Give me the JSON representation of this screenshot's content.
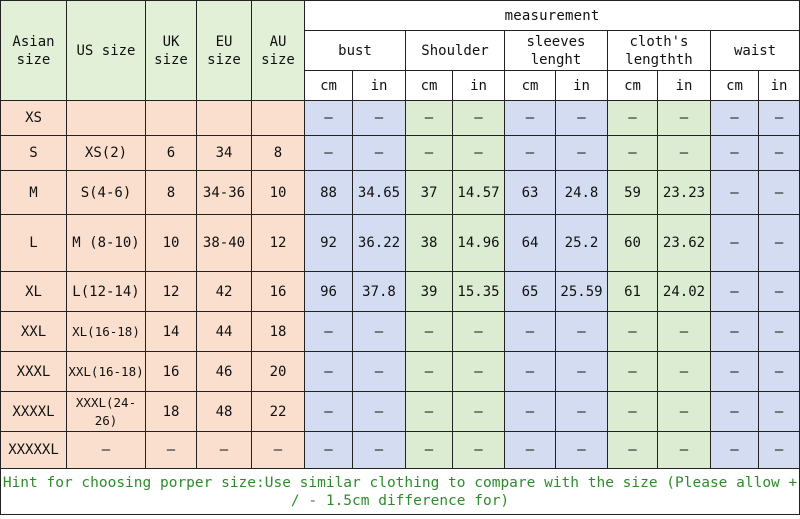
{
  "headers": {
    "asian": "Asian size",
    "us": "US size",
    "uk": "UK size",
    "eu": "EU size",
    "au": "AU size",
    "measurement": "measurement",
    "groups": [
      "bust",
      "Shoulder",
      "sleeves lenght",
      "cloth's lengthth",
      "waist"
    ],
    "units": [
      "cm",
      "in",
      "cm",
      "in",
      "cm",
      "in",
      "cm",
      "in",
      "cm",
      "in"
    ]
  },
  "rows": [
    {
      "asian": "XS",
      "us": "",
      "uk": "",
      "eu": "",
      "au": "",
      "m": [
        "–",
        "–",
        "–",
        "–",
        "–",
        "–",
        "–",
        "–",
        "–",
        "–"
      ]
    },
    {
      "asian": "S",
      "us": "XS(2)",
      "uk": "6",
      "eu": "34",
      "au": "8",
      "m": [
        "–",
        "–",
        "–",
        "–",
        "–",
        "–",
        "–",
        "–",
        "–",
        "–"
      ]
    },
    {
      "asian": "M",
      "us": "S(4-6)",
      "uk": "8",
      "eu": "34-36",
      "au": "10",
      "m": [
        "88",
        "34.65",
        "37",
        "14.57",
        "63",
        "24.8",
        "59",
        "23.23",
        "–",
        "–"
      ]
    },
    {
      "asian": "L",
      "us": "M (8-10)",
      "uk": "10",
      "eu": "38-40",
      "au": "12",
      "m": [
        "92",
        "36.22",
        "38",
        "14.96",
        "64",
        "25.2",
        "60",
        "23.62",
        "–",
        "–"
      ]
    },
    {
      "asian": "XL",
      "us": "L(12-14)",
      "uk": "12",
      "eu": "42",
      "au": "16",
      "m": [
        "96",
        "37.8",
        "39",
        "15.35",
        "65",
        "25.59",
        "61",
        "24.02",
        "–",
        "–"
      ]
    },
    {
      "asian": "XXL",
      "us": "XL(16-18)",
      "uk": "14",
      "eu": "44",
      "au": "18",
      "m": [
        "–",
        "–",
        "–",
        "–",
        "–",
        "–",
        "–",
        "–",
        "–",
        "–"
      ]
    },
    {
      "asian": "XXXL",
      "us": "XXL(16-18)",
      "uk": "16",
      "eu": "46",
      "au": "20",
      "m": [
        "–",
        "–",
        "–",
        "–",
        "–",
        "–",
        "–",
        "–",
        "–",
        "–"
      ]
    },
    {
      "asian": "XXXXL",
      "us": "XXXL(24-26)",
      "uk": "18",
      "eu": "48",
      "au": "22",
      "m": [
        "–",
        "–",
        "–",
        "–",
        "–",
        "–",
        "–",
        "–",
        "–",
        "–"
      ]
    },
    {
      "asian": "XXXXXL",
      "us": "–",
      "uk": "–",
      "eu": "–",
      "au": "–",
      "m": [
        "–",
        "–",
        "–",
        "–",
        "–",
        "–",
        "–",
        "–",
        "–",
        "–"
      ]
    }
  ],
  "hint": "Hint for choosing porper size:Use similar clothing to compare with the size (Please allow + / - 1.5cm difference for)",
  "colors": {
    "header": "#e3f0d8",
    "size_cells": "#fadfcf",
    "blue_cells": "#d3dcf1",
    "green_cells": "#dcecd3",
    "hint_text": "#2f8c2c"
  }
}
